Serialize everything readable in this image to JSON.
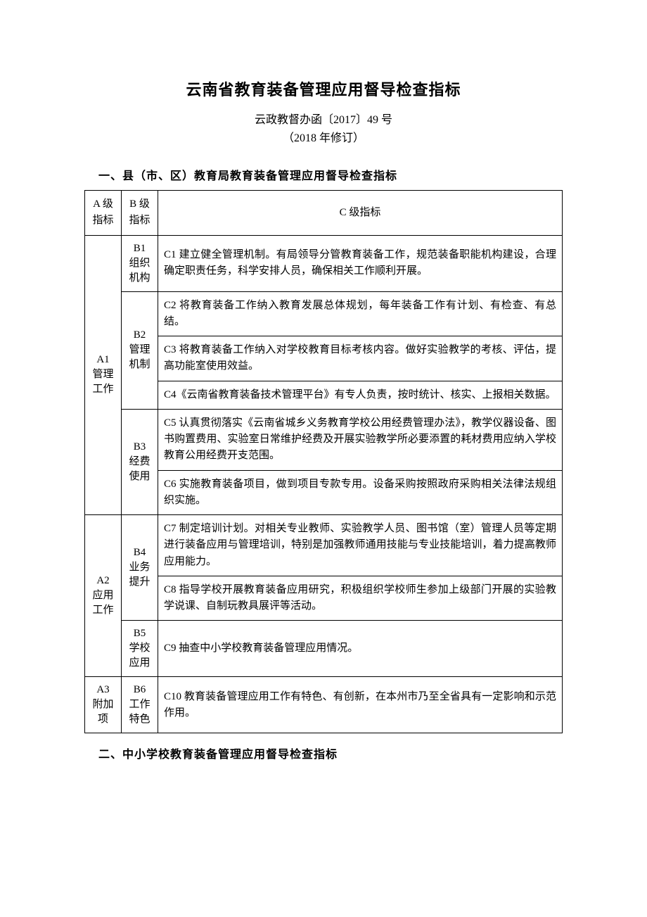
{
  "title": "云南省教育装备管理应用督导检查指标",
  "doc_number": "云政教督办函〔2017〕49 号",
  "revision": "（2018 年修订）",
  "section1_heading": "一、县（市、区）教育局教育装备管理应用督导检查指标",
  "section2_heading": "二、中小学校教育装备管理应用督导检查指标",
  "table": {
    "header": {
      "a": "A 级\n指标",
      "b": "B 级\n指标",
      "c": "C 级指标"
    },
    "rows": [
      {
        "a": "A1\n管理\n工作",
        "a_rowspan": 6,
        "b": "B1\n组织\n机构",
        "b_rowspan": 1,
        "c": "C1 建立健全管理机制。有局领导分管教育装备工作，规范装备职能机构建设，合理确定职责任务，科学安排人员，确保相关工作顺利开展。"
      },
      {
        "b": "B2\n管理\n机制",
        "b_rowspan": 3,
        "c": "C2 将教育装备工作纳入教育发展总体规划，每年装备工作有计划、有检查、有总结。"
      },
      {
        "c": "C3 将教育装备工作纳入对学校教育目标考核内容。做好实验教学的考核、评估，提高功能室使用效益。"
      },
      {
        "c": "C4《云南省教育装备技术管理平台》有专人负责，按时统计、核实、上报相关数据。"
      },
      {
        "b": "B3\n经费\n使用",
        "b_rowspan": 2,
        "c": "C5 认真贯彻落实《云南省城乡义务教育学校公用经费管理办法》，教学仪器设备、图书购置费用、实验室日常维护经费及开展实验教学所必要添置的耗材费用应纳入学校教育公用经费开支范围。"
      },
      {
        "c": "C6 实施教育装备项目，做到项目专款专用。设备采购按照政府采购相关法律法规组织实施。"
      },
      {
        "a": "A2\n应用\n工作",
        "a_rowspan": 3,
        "b": "B4\n业务\n提升",
        "b_rowspan": 2,
        "c": "C7 制定培训计划。对相关专业教师、实验教学人员、图书馆（室）管理人员等定期进行装备应用与管理培训，特别是加强教师通用技能与专业技能培训，着力提高教师应用能力。"
      },
      {
        "c": "C8 指导学校开展教育装备应用研究，积极组织学校师生参加上级部门开展的实验教学说课、自制玩教具展评等活动。"
      },
      {
        "b": "B5\n学校\n应用",
        "b_rowspan": 1,
        "c": "C9 抽查中小学校教育装备管理应用情况。"
      },
      {
        "a": "A3\n附加\n项",
        "a_rowspan": 1,
        "b": "B6\n工作\n特色",
        "b_rowspan": 1,
        "c": "C10 教育装备管理应用工作有特色、有创新，在本州市乃至全省具有一定影响和示范作用。"
      }
    ]
  }
}
